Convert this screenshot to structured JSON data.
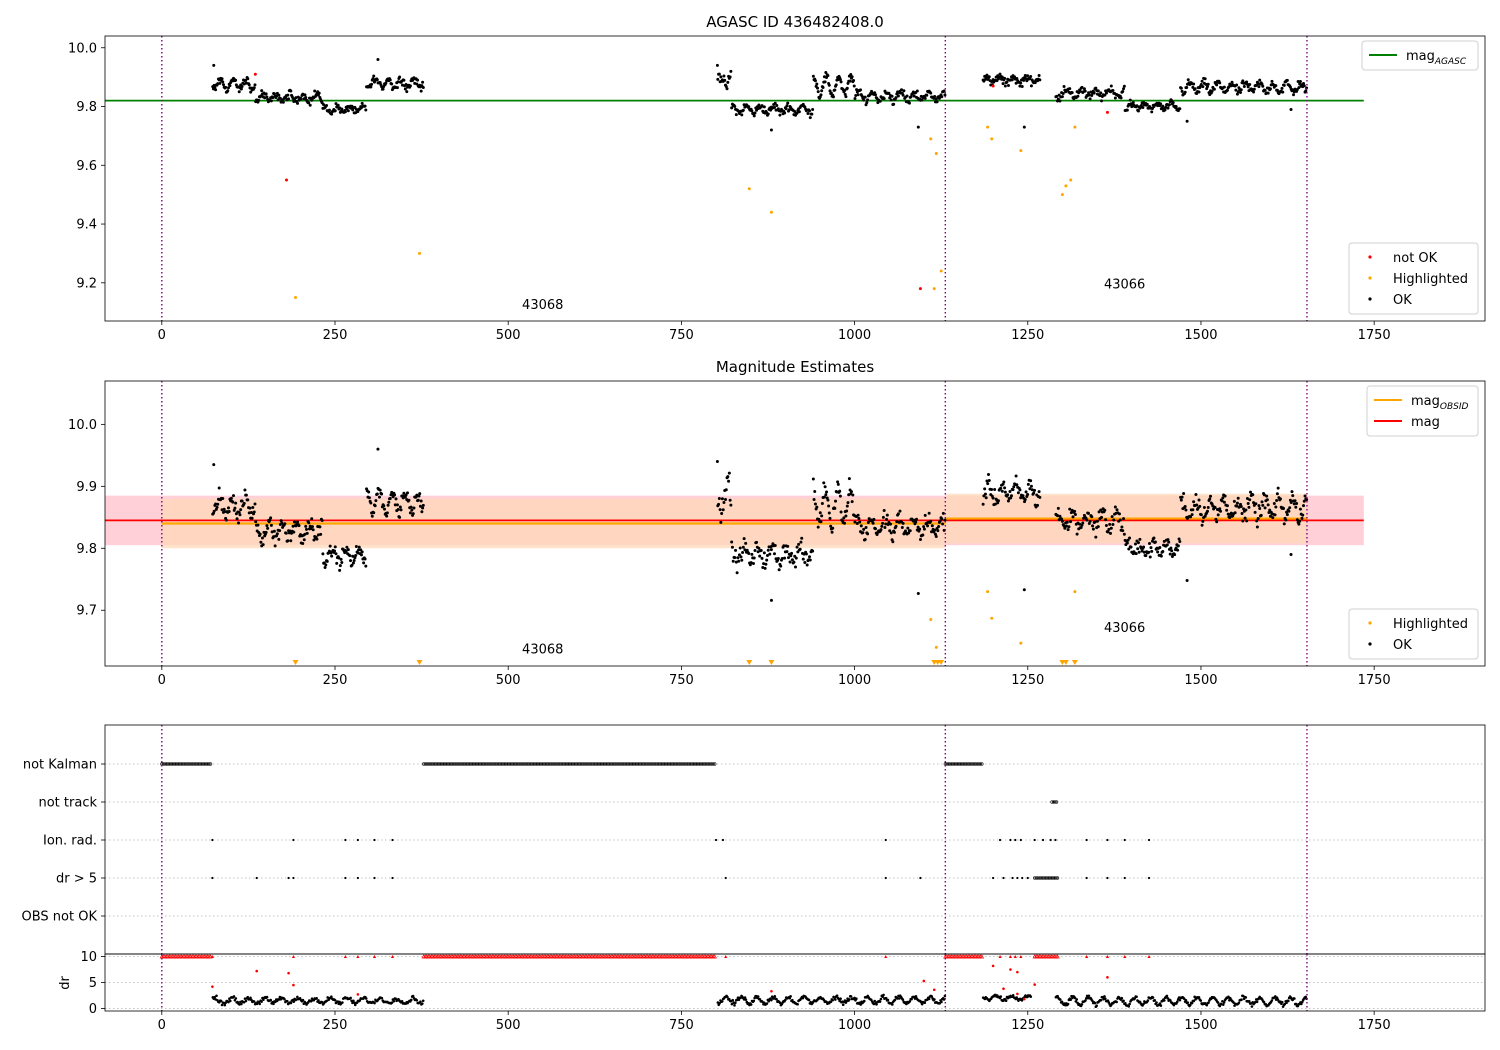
{
  "colors": {
    "ok": "#000000",
    "not_ok": "#ff0000",
    "highlighted": "#ffa500",
    "mag_agasc": "#008000",
    "mag_obsid": "#ffa500",
    "mag": "#ff0000",
    "obsid_boundary": "#800080",
    "band_obsid": "#ffdab9",
    "band_mag": "#ffc0cb"
  },
  "xaxis": {
    "ticks": [
      0,
      250,
      500,
      750,
      1000,
      1250,
      1500,
      1750
    ],
    "range": [
      -82,
      1910
    ]
  },
  "chart_data": [
    {
      "type": "scatter",
      "title": "AGASC ID 436482408.0",
      "ylim": [
        9.07,
        10.04
      ],
      "yticks": [
        9.2,
        9.4,
        9.6,
        9.8,
        10.0
      ],
      "ytick_labels": [
        "9.2",
        "9.4",
        "9.6",
        "9.8",
        "10.0"
      ],
      "obsid_boundaries": [
        0,
        1131,
        1653
      ],
      "obsid_labels": [
        {
          "text": "43068",
          "x": 520,
          "y": 9.11
        },
        {
          "text": "43066",
          "x": 1360,
          "y": 9.18
        }
      ],
      "hlines": [
        {
          "name": "mag_AGASC",
          "y": 9.82,
          "x": [
            -82,
            1735
          ],
          "color": "#008000"
        }
      ],
      "legends": [
        {
          "position": "top-right",
          "items": [
            {
              "label": "mag",
              "sub": "AGASC",
              "style": "line",
              "color": "#008000"
            }
          ]
        },
        {
          "position": "bottom-right",
          "items": [
            {
              "label": "not OK",
              "style": "dot",
              "color": "#ff0000"
            },
            {
              "label": "Highlighted",
              "style": "dot",
              "color": "#ffa500"
            },
            {
              "label": "OK",
              "style": "dot",
              "color": "#000000"
            }
          ]
        }
      ],
      "series": [
        {
          "name": "not OK",
          "color": "#ff0000",
          "points": [
            [
              135,
              9.91
            ],
            [
              180,
              9.55
            ],
            [
              1095,
              9.18
            ],
            [
              1200,
              9.87
            ],
            [
              1365,
              9.78
            ]
          ]
        },
        {
          "name": "Highlighted",
          "color": "#ffa500",
          "points": [
            [
              193,
              9.15
            ],
            [
              372,
              9.3
            ],
            [
              848,
              9.52
            ],
            [
              880,
              9.44
            ],
            [
              1110,
              9.69
            ],
            [
              1115,
              9.18
            ],
            [
              1118,
              9.64
            ],
            [
              1125,
              9.24
            ],
            [
              1192,
              9.73
            ],
            [
              1198,
              9.69
            ],
            [
              1240,
              9.65
            ],
            [
              1300,
              9.5
            ],
            [
              1305,
              9.53
            ],
            [
              1312,
              9.55
            ],
            [
              1318,
              9.73
            ]
          ]
        },
        {
          "name": "OK",
          "color": "#000000",
          "segments": [
            {
              "x": [
                73,
                135
              ],
              "mean": 9.875,
              "amp": 0.016,
              "noise": 0.012,
              "n": 60
            },
            {
              "x": [
                135,
                232
              ],
              "mean": 9.83,
              "amp": 0.012,
              "noise": 0.012,
              "n": 90
            },
            {
              "x": [
                232,
                295
              ],
              "mean": 9.79,
              "amp": 0.01,
              "noise": 0.01,
              "n": 60
            },
            {
              "x": [
                295,
                378
              ],
              "mean": 9.88,
              "amp": 0.015,
              "noise": 0.012,
              "n": 80
            },
            {
              "x": [
                802,
                822
              ],
              "mean": 9.89,
              "amp": 0.02,
              "noise": 0.02,
              "n": 18
            },
            {
              "x": [
                822,
                940
              ],
              "mean": 9.79,
              "amp": 0.012,
              "noise": 0.012,
              "n": 105
            },
            {
              "x": [
                940,
                1000
              ],
              "mean": 9.87,
              "amp": 0.03,
              "noise": 0.014,
              "n": 60
            },
            {
              "x": [
                1000,
                1131
              ],
              "mean": 9.835,
              "amp": 0.014,
              "noise": 0.012,
              "n": 115
            },
            {
              "x": [
                1185,
                1268
              ],
              "mean": 9.89,
              "amp": 0.012,
              "noise": 0.012,
              "n": 75
            },
            {
              "x": [
                1290,
                1390
              ],
              "mean": 9.845,
              "amp": 0.012,
              "noise": 0.013,
              "n": 85
            },
            {
              "x": [
                1390,
                1470
              ],
              "mean": 9.8,
              "amp": 0.01,
              "noise": 0.01,
              "n": 75
            },
            {
              "x": [
                1470,
                1653
              ],
              "mean": 9.865,
              "amp": 0.015,
              "noise": 0.013,
              "n": 165
            }
          ],
          "extra_points": [
            [
              75,
              9.94
            ],
            [
              312,
              9.96
            ],
            [
              802,
              9.94
            ],
            [
              1092,
              9.73
            ],
            [
              1245,
              9.73
            ],
            [
              1480,
              9.75
            ],
            [
              880,
              9.72
            ],
            [
              1630,
              9.79
            ]
          ]
        }
      ]
    },
    {
      "type": "scatter",
      "title": "Magnitude Estimates",
      "ylim": [
        9.61,
        10.07
      ],
      "yticks": [
        9.7,
        9.8,
        9.9,
        10.0
      ],
      "ytick_labels": [
        "9.7",
        "9.8",
        "9.9",
        "10.0"
      ],
      "obsid_boundaries": [
        0,
        1131,
        1653
      ],
      "obsid_labels": [
        {
          "text": "43068",
          "x": 520,
          "y": 9.63
        },
        {
          "text": "43066",
          "x": 1360,
          "y": 9.665
        }
      ],
      "bands": [
        {
          "name": "mag",
          "x": [
            -82,
            1735
          ],
          "y": [
            9.805,
            9.885
          ],
          "color": "#ffc0cb"
        },
        {
          "name": "mag_OBSID",
          "x": [
            0,
            1131
          ],
          "y": [
            9.8,
            9.88
          ],
          "color": "#ffdab9"
        },
        {
          "name": "mag_OBSID",
          "x": [
            1131,
            1653
          ],
          "y": [
            9.808,
            9.888
          ],
          "color": "#ffdab9"
        }
      ],
      "obsid_lines": [
        {
          "x": [
            0,
            1131
          ],
          "y": 9.84
        },
        {
          "x": [
            1131,
            1653
          ],
          "y": 9.848
        }
      ],
      "hlines": [
        {
          "name": "mag",
          "y": 9.845,
          "x": [
            -82,
            1735
          ],
          "color": "#ff0000"
        }
      ],
      "legends": [
        {
          "position": "top-right",
          "items": [
            {
              "label": "mag",
              "sub": "OBSID",
              "style": "line",
              "color": "#ffa500"
            },
            {
              "label": "mag",
              "style": "line",
              "color": "#ff0000"
            }
          ]
        },
        {
          "position": "bottom-right",
          "items": [
            {
              "label": "Highlighted",
              "style": "dot",
              "color": "#ffa500"
            },
            {
              "label": "OK",
              "style": "dot",
              "color": "#000000"
            }
          ]
        }
      ],
      "clipped_markers": [
        193,
        372,
        848,
        880,
        1115,
        1120,
        1125,
        1300,
        1305,
        1318
      ],
      "series": [
        {
          "name": "Highlighted",
          "color": "#ffa500",
          "points": [
            [
              1110,
              9.685
            ],
            [
              1118,
              9.64
            ],
            [
              1192,
              9.73
            ],
            [
              1198,
              9.687
            ],
            [
              1240,
              9.647
            ],
            [
              1318,
              9.73
            ]
          ]
        },
        {
          "name": "OK",
          "color": "#000000",
          "segments": [
            {
              "x": [
                73,
                135
              ],
              "mean": 9.868,
              "amp": 0.016,
              "noise": 0.012,
              "n": 60
            },
            {
              "x": [
                135,
                232
              ],
              "mean": 9.828,
              "amp": 0.012,
              "noise": 0.012,
              "n": 90
            },
            {
              "x": [
                232,
                295
              ],
              "mean": 9.788,
              "amp": 0.01,
              "noise": 0.01,
              "n": 60
            },
            {
              "x": [
                295,
                378
              ],
              "mean": 9.875,
              "amp": 0.015,
              "noise": 0.012,
              "n": 80
            },
            {
              "x": [
                802,
                822
              ],
              "mean": 9.885,
              "amp": 0.02,
              "noise": 0.02,
              "n": 18
            },
            {
              "x": [
                822,
                940
              ],
              "mean": 9.79,
              "amp": 0.012,
              "noise": 0.012,
              "n": 105
            },
            {
              "x": [
                940,
                1000
              ],
              "mean": 9.87,
              "amp": 0.03,
              "noise": 0.014,
              "n": 60
            },
            {
              "x": [
                1000,
                1131
              ],
              "mean": 9.835,
              "amp": 0.014,
              "noise": 0.012,
              "n": 115
            },
            {
              "x": [
                1185,
                1268
              ],
              "mean": 9.89,
              "amp": 0.012,
              "noise": 0.012,
              "n": 75
            },
            {
              "x": [
                1290,
                1390
              ],
              "mean": 9.845,
              "amp": 0.012,
              "noise": 0.013,
              "n": 85
            },
            {
              "x": [
                1390,
                1470
              ],
              "mean": 9.8,
              "amp": 0.01,
              "noise": 0.01,
              "n": 75
            },
            {
              "x": [
                1470,
                1653
              ],
              "mean": 9.865,
              "amp": 0.015,
              "noise": 0.013,
              "n": 165
            }
          ],
          "extra_points": [
            [
              75,
              9.935
            ],
            [
              312,
              9.96
            ],
            [
              802,
              9.94
            ],
            [
              1092,
              9.727
            ],
            [
              1245,
              9.733
            ],
            [
              1480,
              9.748
            ],
            [
              880,
              9.716
            ],
            [
              1630,
              9.79
            ]
          ]
        }
      ]
    },
    {
      "type": "scatter",
      "title": "",
      "flag_rows": [
        "not Kalman",
        "not track",
        "Ion. rad.",
        "dr > 5",
        "OBS not OK"
      ],
      "obsid_boundaries": [
        0,
        1131,
        1653
      ],
      "flags": {
        "not Kalman": {
          "ranges": [
            [
              0,
              72
            ],
            [
              378,
              800
            ],
            [
              1131,
              1185
            ]
          ],
          "points": []
        },
        "not track": {
          "ranges": [
            [
              1285,
              1292
            ]
          ],
          "points": []
        },
        "Ion. rad.": {
          "ranges": [],
          "points": [
            73,
            190,
            265,
            283,
            307,
            333,
            800,
            810,
            1045,
            1210,
            1225,
            1232,
            1240,
            1260,
            1272,
            1283,
            1290,
            1335,
            1365,
            1390,
            1425
          ]
        },
        "dr > 5": {
          "ranges": [
            [
              1260,
              1295
            ]
          ],
          "points": [
            73,
            137,
            183,
            190,
            265,
            283,
            307,
            333,
            814,
            1045,
            1095,
            1200,
            1215,
            1228,
            1235,
            1242,
            1250,
            1335,
            1365,
            1390,
            1425
          ]
        },
        "OBS not OK": {
          "ranges": [],
          "points": []
        }
      }
    },
    {
      "type": "scatter",
      "ylabel": "dr",
      "ylim": [
        -0.5,
        10.5
      ],
      "yticks": [
        0,
        5,
        10
      ],
      "ytick_labels": [
        "0",
        "5",
        "10"
      ],
      "obsid_boundaries": [
        0,
        1131,
        1653
      ],
      "series": [
        {
          "name": "not OK (dr > 5)",
          "color": "#ff0000",
          "at_cap": [
            [
              0,
              72
            ],
            [
              378,
              800
            ],
            [
              1131,
              1185
            ],
            [
              1260,
              1295
            ]
          ],
          "cap_points": [
            73,
            190,
            265,
            283,
            307,
            333,
            814,
            1045,
            1210,
            1225,
            1232,
            1240,
            1335,
            1365,
            1390,
            1425
          ],
          "points": [
            [
              73,
              4.2
            ],
            [
              137,
              7.2
            ],
            [
              183,
              6.8
            ],
            [
              190,
              4.5
            ],
            [
              283,
              2.7
            ],
            [
              880,
              3.3
            ],
            [
              1100,
              5.3
            ],
            [
              1115,
              3.6
            ],
            [
              1200,
              8.2
            ],
            [
              1215,
              3.8
            ],
            [
              1225,
              7.5
            ],
            [
              1235,
              2.8
            ],
            [
              1245,
              1.8
            ],
            [
              1365,
              6.0
            ],
            [
              1235,
              7.0
            ],
            [
              1260,
              4.6
            ]
          ]
        },
        {
          "name": "OK",
          "color": "#000000",
          "segments": [
            {
              "x": [
                73,
                378
              ],
              "mean": 1.5,
              "amp": 0.5,
              "noise": 0.35,
              "n": 230
            },
            {
              "x": [
                802,
                1131
              ],
              "mean": 1.6,
              "amp": 0.6,
              "noise": 0.35,
              "n": 260
            },
            {
              "x": [
                1185,
                1255
              ],
              "mean": 2.0,
              "amp": 0.4,
              "noise": 0.3,
              "n": 55
            },
            {
              "x": [
                1290,
                1653
              ],
              "mean": 1.4,
              "amp": 0.7,
              "noise": 0.35,
              "n": 290
            }
          ],
          "extra_points": []
        }
      ]
    }
  ]
}
